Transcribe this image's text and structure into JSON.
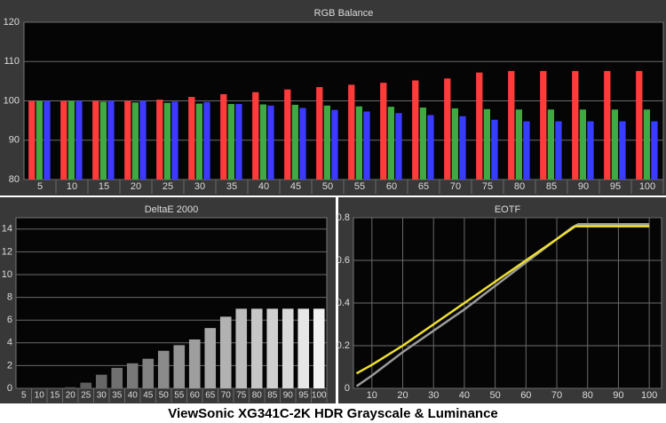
{
  "chart_data": [
    {
      "type": "bar",
      "title": "RGB Balance",
      "categories": [
        "5",
        "10",
        "15",
        "20",
        "25",
        "30",
        "35",
        "40",
        "45",
        "50",
        "55",
        "60",
        "65",
        "70",
        "75",
        "80",
        "85",
        "90",
        "95",
        "100"
      ],
      "series": [
        {
          "color": "#ff3b3b",
          "values": [
            100,
            100,
            100,
            100,
            100.3,
            101,
            101.7,
            102.2,
            102.9,
            103.5,
            104.1,
            104.6,
            105.2,
            105.7,
            107.2,
            107.6,
            107.6,
            107.6,
            107.6,
            107.6
          ]
        },
        {
          "color": "#3faa3f",
          "values": [
            100,
            100,
            99.8,
            99.6,
            99.5,
            99.3,
            99.2,
            99.1,
            99,
            98.8,
            98.6,
            98.5,
            98.3,
            98.1,
            97.9,
            97.8,
            97.8,
            97.8,
            97.8,
            97.8
          ]
        },
        {
          "color": "#3b3bff",
          "values": [
            100,
            100,
            100,
            100,
            99.8,
            99.7,
            99.2,
            98.8,
            98.2,
            97.7,
            97.3,
            96.9,
            96.4,
            96.1,
            95.2,
            94.8,
            94.8,
            94.8,
            94.8,
            94.8
          ]
        }
      ],
      "ylim": [
        80,
        120
      ],
      "yticks": [
        80,
        90,
        100,
        110,
        120
      ],
      "grid": true
    },
    {
      "type": "bar",
      "title": "DeltaE 2000",
      "categories": [
        "5",
        "10",
        "15",
        "20",
        "25",
        "30",
        "35",
        "40",
        "45",
        "50",
        "55",
        "60",
        "65",
        "70",
        "75",
        "80",
        "85",
        "90",
        "95",
        "100"
      ],
      "values": [
        0,
        0,
        0,
        0.1,
        0.5,
        1.2,
        1.8,
        2.2,
        2.6,
        3.3,
        3.8,
        4.3,
        5.3,
        6.3,
        7,
        7,
        7,
        7,
        7,
        7
      ],
      "colors": [
        "#3c3c3c",
        "#444444",
        "#4c4c4c",
        "#555555",
        "#5e5e5e",
        "#676767",
        "#707070",
        "#797979",
        "#828282",
        "#8b8b8b",
        "#949494",
        "#9e9e9e",
        "#a8a8a8",
        "#b2b2b2",
        "#bcbcbc",
        "#c6c6c6",
        "#d0d0d0",
        "#dadada",
        "#e6e6e6",
        "#f2f2f2"
      ],
      "ylim": [
        0,
        15
      ],
      "yticks": [
        0,
        2,
        4,
        6,
        8,
        10,
        12,
        14
      ],
      "grid": true
    },
    {
      "type": "line",
      "title": "EOTF",
      "series": [
        {
          "color": "#9a9a9a",
          "x": [
            5,
            10,
            20,
            30,
            40,
            50,
            60,
            70,
            75,
            77,
            100
          ],
          "values": [
            0.01,
            0.06,
            0.17,
            0.27,
            0.37,
            0.48,
            0.59,
            0.7,
            0.755,
            0.77,
            0.77
          ]
        },
        {
          "color": "#f0e030",
          "x": [
            5,
            10,
            20,
            30,
            40,
            50,
            60,
            70,
            76,
            80,
            100
          ],
          "values": [
            0.07,
            0.11,
            0.2,
            0.3,
            0.4,
            0.5,
            0.6,
            0.7,
            0.76,
            0.76,
            0.76
          ]
        }
      ],
      "xlim": [
        4,
        104
      ],
      "xticks": [
        10,
        20,
        30,
        40,
        50,
        60,
        70,
        80,
        90,
        100
      ],
      "ylim": [
        0,
        0.8
      ],
      "yticks": [
        0,
        0.2,
        0.4,
        0.6,
        0.8
      ],
      "grid": true
    }
  ],
  "caption": "ViewSonic XG341C-2K HDR Grayscale & Luminance"
}
